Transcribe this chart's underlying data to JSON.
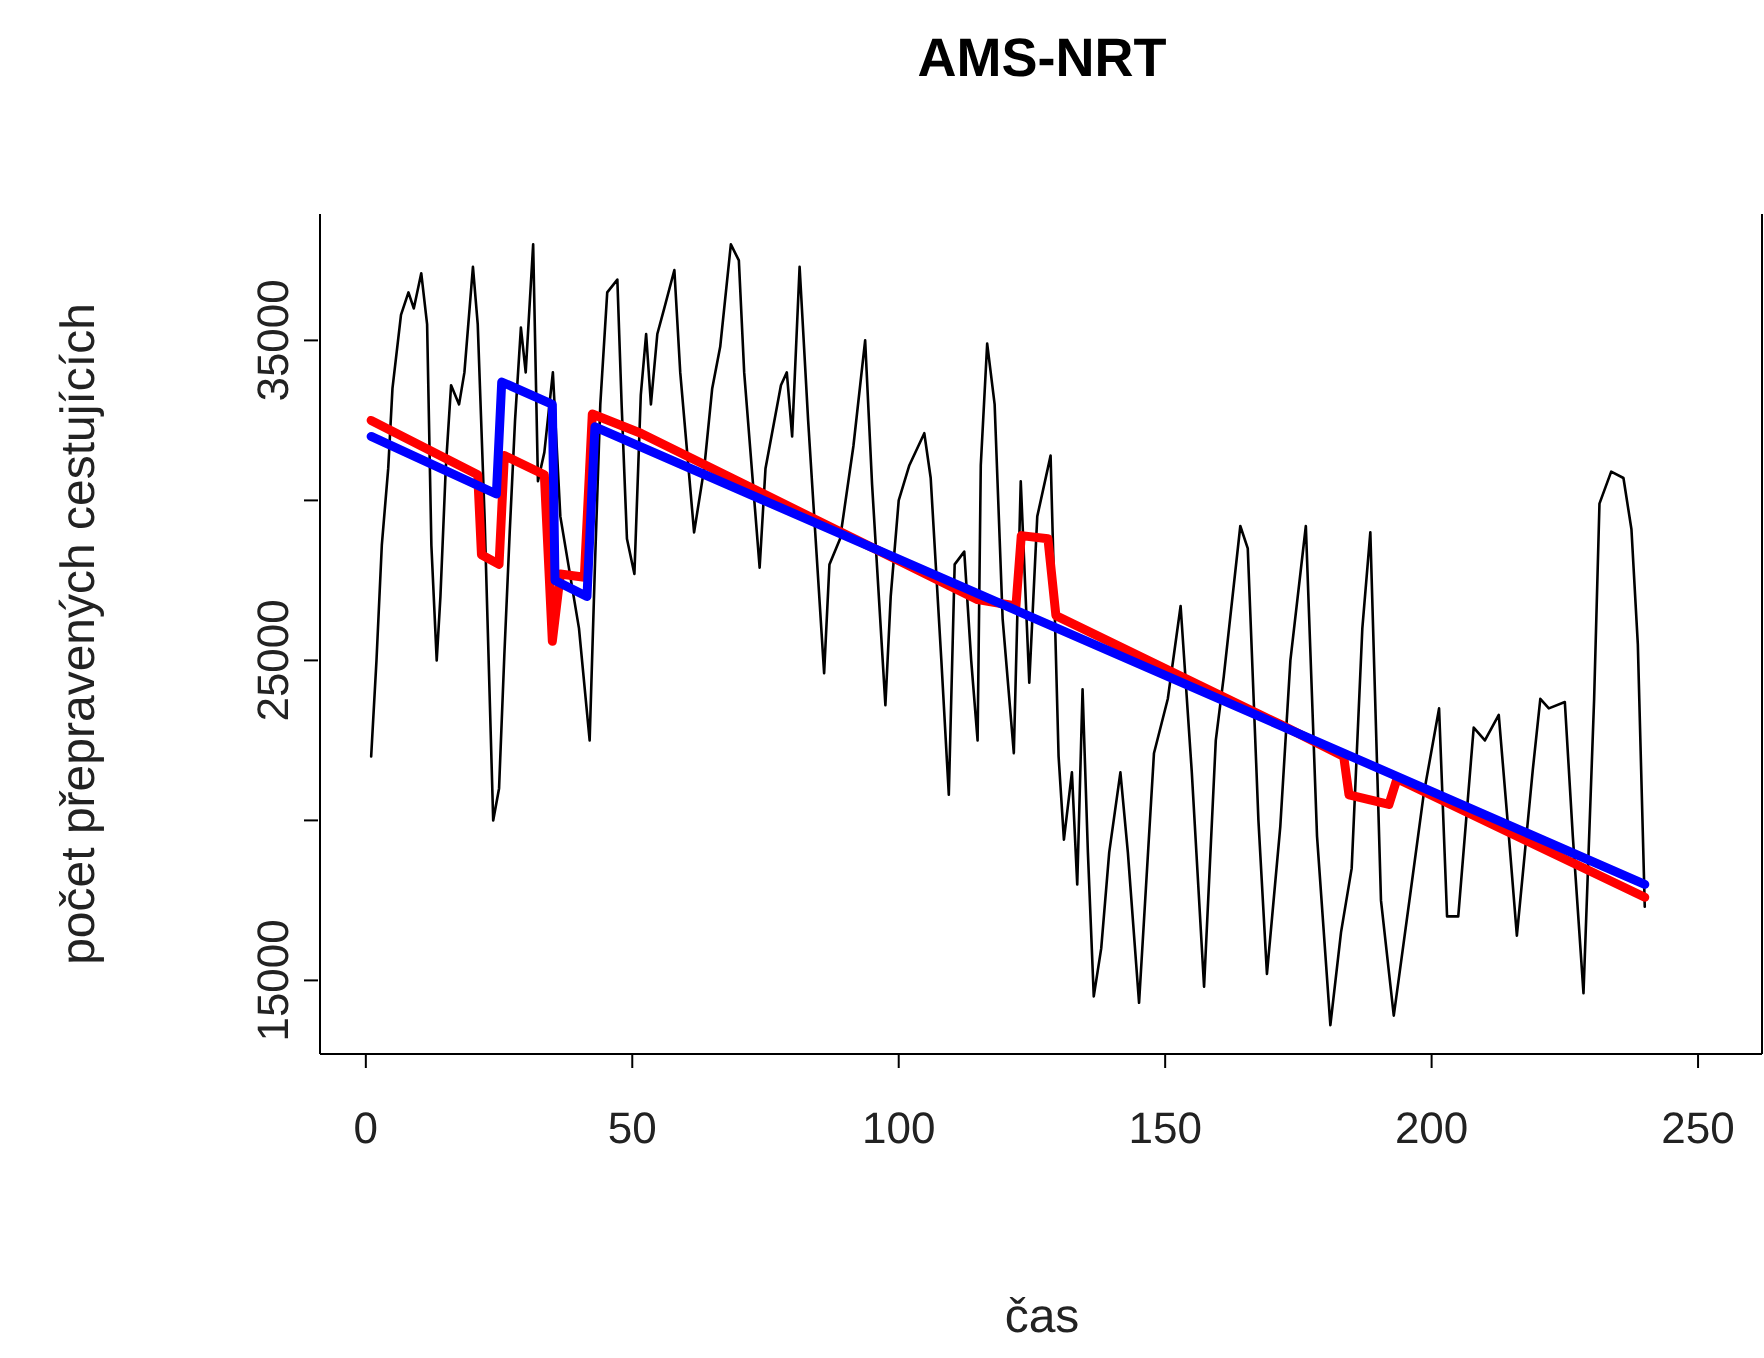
{
  "chart_data": {
    "type": "line",
    "title": "AMS-NRT",
    "xlabel": "čas",
    "ylabel": "počet přepravených cestujících",
    "xlim": [
      -8.6,
      262
    ],
    "ylim": [
      12700,
      38950
    ],
    "xticks": [
      0,
      50,
      100,
      150,
      200,
      250
    ],
    "yticks": [
      15000,
      {
        "value": 20000,
        "label": null
      },
      25000,
      {
        "value": 30000,
        "label": null
      },
      35000
    ],
    "series": [
      {
        "color": "#000000",
        "x": [
          1,
          2,
          3,
          4.2,
          5,
          6.6,
          8,
          9,
          10.4,
          11.5,
          12.3,
          13.3,
          14,
          15,
          16,
          17.5,
          18.5,
          20.1,
          21,
          22.3,
          23.9,
          25,
          26,
          27,
          28,
          29.1,
          30,
          31.4,
          32.3,
          33.5,
          35.1,
          36.5,
          38,
          40,
          42,
          43,
          44,
          45.3,
          47.2,
          48,
          49,
          50.4,
          51.6,
          52.6,
          53.5,
          54.7,
          56,
          57.9,
          59,
          61.6,
          63.5,
          65,
          66.5,
          68.5,
          70,
          71,
          73.9,
          75,
          77.9,
          79,
          80,
          81.4,
          83,
          86,
          87,
          89,
          91.5,
          93.7,
          95,
          97.5,
          98.5,
          100,
          102,
          104.8,
          106,
          108,
          109.4,
          110.5,
          112.3,
          113.6,
          114.8,
          115.4,
          116.6,
          118,
          119.5,
          121.6,
          122.9,
          124.5,
          126,
          128.5,
          130,
          131,
          132.5,
          133.5,
          134.5,
          135.5,
          136.6,
          138,
          139.5,
          141.6,
          143,
          145.1,
          147.9,
          150.5,
          152.9,
          155,
          157.3,
          159.5,
          161,
          164.1,
          165.5,
          167.5,
          169.1,
          171.6,
          173.5,
          176.4,
          178.5,
          181,
          183,
          185,
          187,
          188.5,
          190.5,
          192.9,
          196,
          198.5,
          201.4,
          202.9,
          205,
          207.9,
          210,
          212.6,
          214.5,
          216,
          219,
          220.4,
          222,
          225,
          226.5,
          228.5,
          230.5,
          231.5,
          233.7,
          236,
          237.5,
          238.7,
          240
        ],
        "values": [
          22000,
          25000,
          28600,
          31000,
          33500,
          35800,
          36500,
          36000,
          37100,
          35500,
          28600,
          25000,
          27000,
          31000,
          33600,
          33000,
          34000,
          37300,
          35500,
          29400,
          20000,
          21000,
          25200,
          29000,
          32500,
          35400,
          34000,
          38000,
          30600,
          31500,
          34000,
          29500,
          28000,
          26000,
          22500,
          28000,
          33000,
          36500,
          36900,
          33000,
          28800,
          27700,
          33300,
          35200,
          33000,
          35200,
          36000,
          37200,
          34000,
          29000,
          31000,
          33500,
          34800,
          38000,
          37500,
          34000,
          27900,
          31000,
          33600,
          34000,
          32000,
          37300,
          32500,
          24600,
          28000,
          28800,
          31700,
          35000,
          30500,
          23600,
          27000,
          30000,
          31100,
          32100,
          30700,
          25000,
          20800,
          28000,
          28400,
          25000,
          22500,
          31100,
          34900,
          33000,
          26300,
          22100,
          30600,
          24300,
          29500,
          31400,
          22000,
          19400,
          21500,
          18000,
          24100,
          19000,
          14500,
          16000,
          19000,
          21500,
          19000,
          14300,
          22100,
          23800,
          26700,
          21500,
          14800,
          22500,
          24500,
          29200,
          28500,
          20000,
          15200,
          19800,
          25000,
          29200,
          19500,
          13600,
          16500,
          18500,
          26000,
          29000,
          17500,
          13900,
          17700,
          20800,
          23500,
          17000,
          17000,
          22900,
          22500,
          23300,
          19500,
          16400,
          21600,
          23800,
          23500,
          23700,
          19500,
          14600,
          23800,
          29900,
          30900,
          30700,
          29100,
          25500,
          17300
        ]
      },
      {
        "color": "#ff0000",
        "x": [
          1,
          21,
          21.7,
          25,
          26,
          33.5,
          35,
          36.5,
          41,
          42.5,
          51.6,
          114.8,
          122,
          123,
          128,
          129.5,
          171.6,
          183.5,
          184.5,
          192,
          193.5,
          240
        ],
        "values": [
          32500,
          30800,
          28300,
          28000,
          31400,
          30800,
          25600,
          27700,
          27600,
          32700,
          32100,
          26900,
          26700,
          28900,
          28800,
          26400,
          23000,
          22000,
          20800,
          20500,
          21300,
          17600
        ]
      },
      {
        "color": "#0000ff",
        "x": [
          1,
          24.5,
          25.5,
          35,
          35.5,
          41.5,
          43,
          240
        ],
        "values": [
          32000,
          30200,
          33700,
          33000,
          27500,
          27000,
          32300,
          18000
        ]
      }
    ]
  }
}
